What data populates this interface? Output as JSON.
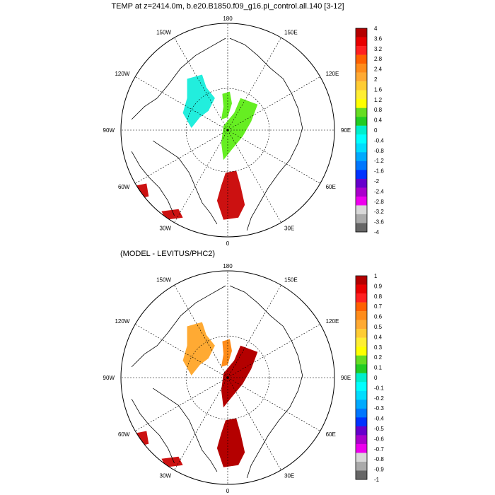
{
  "panels": [
    {
      "id": "top",
      "title": "TEMP at z=2414.0m, b.e20.B1850.f09_g16.pi_control.all.140 [3-12]",
      "lon_labels": {
        "n": "180",
        "nw": "150W",
        "ne": "150E",
        "w2": "120W",
        "e2": "120E",
        "w": "90W",
        "e": "90E",
        "sw": "60W",
        "se": "60E",
        "ssw": "30W",
        "sse": "30E",
        "s": "0"
      },
      "colorbar": {
        "labels": [
          "4",
          "3.6",
          "3.2",
          "2.8",
          "2.4",
          "2",
          "1.6",
          "1.2",
          "0.8",
          "0.4",
          "0",
          "-0.4",
          "-0.8",
          "-1.2",
          "-1.6",
          "-2",
          "-2.4",
          "-2.8",
          "-3.2",
          "-3.6",
          "-4"
        ],
        "colors": [
          "#b40000",
          "#e80000",
          "#ff2020",
          "#ff6000",
          "#ff8c1a",
          "#ffaa33",
          "#ffcc33",
          "#ffee33",
          "#ffff00",
          "#66dd22",
          "#22cc22",
          "#00eecc",
          "#00ffff",
          "#00ddff",
          "#00aaff",
          "#0077ff",
          "#0033ff",
          "#6600cc",
          "#aa00cc",
          "#ee00ee",
          "#d8d8d8",
          "#aaaaaa",
          "#666666"
        ]
      },
      "fields": [
        {
          "name": "beaufort-anomaly",
          "color": "#22eedd"
        },
        {
          "name": "eurasian-basin-anomaly",
          "color": "#66ee22"
        },
        {
          "name": "nordic-seas-anomaly",
          "color": "#66ee22"
        },
        {
          "name": "labrador-anomaly",
          "color": "#cc1111"
        },
        {
          "name": "greenland-south-anomaly",
          "color": "#cc1111"
        },
        {
          "name": "atlantic-edge-anomaly",
          "color": "#cc1111"
        }
      ]
    },
    {
      "id": "bottom",
      "title": "(MODEL - LEVITUS/PHC2)",
      "lon_labels": {
        "n": "180",
        "nw": "150W",
        "ne": "150E",
        "w2": "120W",
        "e2": "120E",
        "w": "90W",
        "e": "90E",
        "sw": "60W",
        "se": "60E",
        "ssw": "30W",
        "sse": "30E",
        "s": "0"
      },
      "colorbar": {
        "labels": [
          "1",
          "0.9",
          "0.8",
          "0.7",
          "0.6",
          "0.5",
          "0.4",
          "0.3",
          "0.2",
          "0.1",
          "0",
          "-0.1",
          "-0.2",
          "-0.3",
          "-0.4",
          "-0.5",
          "-0.6",
          "-0.7",
          "-0.8",
          "-0.9",
          "-1"
        ],
        "colors": [
          "#b40000",
          "#e80000",
          "#ff2020",
          "#ff6000",
          "#ff8c1a",
          "#ffaa33",
          "#ffcc33",
          "#ffee33",
          "#ffff00",
          "#66dd22",
          "#22cc22",
          "#00eecc",
          "#00ffff",
          "#00ddff",
          "#00aaff",
          "#0077ff",
          "#0033ff",
          "#6600cc",
          "#aa00cc",
          "#ee00ee",
          "#d8d8d8",
          "#aaaaaa",
          "#666666"
        ]
      },
      "fields": [
        {
          "name": "beaufort-difference",
          "color": "#ffaa33"
        },
        {
          "name": "lomonosov-difference",
          "color": "#ff8c1a"
        },
        {
          "name": "eurasian-basin-difference",
          "color": "#b40000"
        },
        {
          "name": "nordic-seas-difference",
          "color": "#b40000"
        },
        {
          "name": "labrador-difference",
          "color": "#cc1111"
        },
        {
          "name": "greenland-south-difference",
          "color": "#cc1111"
        }
      ]
    }
  ]
}
